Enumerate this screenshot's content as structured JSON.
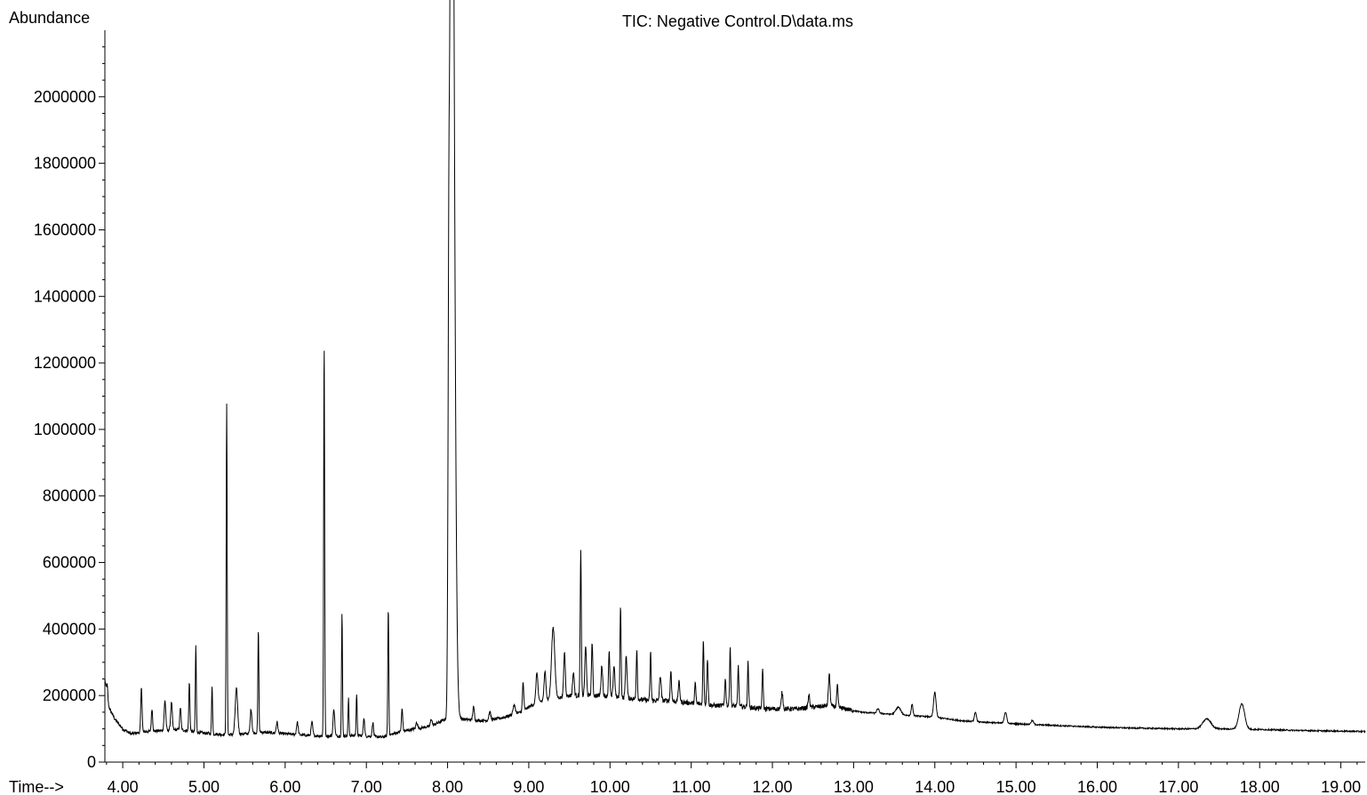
{
  "chart_data": {
    "type": "line",
    "title": "TIC: Negative Control.D\\data.ms",
    "ylabel": "Abundance",
    "xlabel": "Time-->",
    "xlim": [
      3.78,
      19.3
    ],
    "ylim": [
      0,
      2200000
    ],
    "x_ticks": [
      "4.00",
      "5.00",
      "6.00",
      "7.00",
      "8.00",
      "9.00",
      "10.00",
      "11.00",
      "12.00",
      "13.00",
      "14.00",
      "15.00",
      "16.00",
      "17.00",
      "18.00",
      "19.00"
    ],
    "y_ticks": [
      "0",
      "200000",
      "400000",
      "600000",
      "800000",
      "1000000",
      "1200000",
      "1400000",
      "1600000",
      "1800000",
      "2000000"
    ],
    "line_color": "#000000",
    "grid": false,
    "legend": "none",
    "baseline": [
      [
        3.78,
        250000
      ],
      [
        3.82,
        170000
      ],
      [
        3.9,
        130000
      ],
      [
        4.0,
        100000
      ],
      [
        4.1,
        85000
      ],
      [
        4.3,
        92000
      ],
      [
        4.5,
        95000
      ],
      [
        4.7,
        98000
      ],
      [
        4.9,
        90000
      ],
      [
        5.1,
        85000
      ],
      [
        5.3,
        82000
      ],
      [
        5.5,
        85000
      ],
      [
        5.7,
        90000
      ],
      [
        6.0,
        85000
      ],
      [
        6.3,
        80000
      ],
      [
        6.6,
        78000
      ],
      [
        6.9,
        80000
      ],
      [
        7.2,
        75000
      ],
      [
        7.4,
        90000
      ],
      [
        7.6,
        100000
      ],
      [
        7.8,
        108000
      ],
      [
        7.98,
        130000
      ],
      [
        8.15,
        130000
      ],
      [
        8.35,
        125000
      ],
      [
        8.5,
        125000
      ],
      [
        8.7,
        135000
      ],
      [
        8.9,
        150000
      ],
      [
        9.1,
        180000
      ],
      [
        9.3,
        190000
      ],
      [
        9.5,
        200000
      ],
      [
        9.7,
        200000
      ],
      [
        9.9,
        200000
      ],
      [
        10.1,
        195000
      ],
      [
        10.3,
        190000
      ],
      [
        10.5,
        185000
      ],
      [
        10.7,
        185000
      ],
      [
        10.9,
        180000
      ],
      [
        11.1,
        175000
      ],
      [
        11.3,
        170000
      ],
      [
        11.5,
        170000
      ],
      [
        11.7,
        165000
      ],
      [
        11.9,
        160000
      ],
      [
        12.1,
        160000
      ],
      [
        12.3,
        160000
      ],
      [
        12.5,
        165000
      ],
      [
        12.7,
        170000
      ],
      [
        12.9,
        160000
      ],
      [
        13.1,
        150000
      ],
      [
        13.4,
        145000
      ],
      [
        13.7,
        140000
      ],
      [
        14.0,
        135000
      ],
      [
        14.3,
        125000
      ],
      [
        14.6,
        120000
      ],
      [
        15.0,
        115000
      ],
      [
        15.5,
        110000
      ],
      [
        16.0,
        105000
      ],
      [
        16.5,
        102000
      ],
      [
        17.0,
        100000
      ],
      [
        17.5,
        100000
      ],
      [
        18.0,
        98000
      ],
      [
        18.5,
        95000
      ],
      [
        19.0,
        93000
      ],
      [
        19.3,
        92000
      ]
    ],
    "peaks": [
      [
        3.81,
        230000,
        0.008
      ],
      [
        4.23,
        225000,
        0.008
      ],
      [
        4.36,
        160000,
        0.008
      ],
      [
        4.52,
        185000,
        0.01
      ],
      [
        4.6,
        180000,
        0.01
      ],
      [
        4.71,
        165000,
        0.008
      ],
      [
        4.82,
        240000,
        0.007
      ],
      [
        4.9,
        350000,
        0.006
      ],
      [
        5.1,
        230000,
        0.006
      ],
      [
        5.28,
        1080000,
        0.006
      ],
      [
        5.4,
        220000,
        0.015
      ],
      [
        5.58,
        160000,
        0.01
      ],
      [
        5.67,
        400000,
        0.006
      ],
      [
        5.9,
        120000,
        0.01
      ],
      [
        6.15,
        120000,
        0.01
      ],
      [
        6.33,
        120000,
        0.01
      ],
      [
        6.48,
        1260000,
        0.006
      ],
      [
        6.6,
        160000,
        0.01
      ],
      [
        6.7,
        445000,
        0.006
      ],
      [
        6.78,
        190000,
        0.006
      ],
      [
        6.88,
        205000,
        0.006
      ],
      [
        6.97,
        135000,
        0.008
      ],
      [
        7.08,
        120000,
        0.008
      ],
      [
        7.27,
        465000,
        0.006
      ],
      [
        7.44,
        160000,
        0.008
      ],
      [
        7.62,
        120000,
        0.01
      ],
      [
        7.8,
        130000,
        0.01
      ],
      [
        8.02,
        1880000,
        0.012
      ],
      [
        8.045,
        2150000,
        0.01
      ],
      [
        8.07,
        1650000,
        0.012
      ],
      [
        8.32,
        165000,
        0.01
      ],
      [
        8.52,
        150000,
        0.012
      ],
      [
        8.82,
        170000,
        0.015
      ],
      [
        8.93,
        240000,
        0.008
      ],
      [
        9.1,
        270000,
        0.012
      ],
      [
        9.2,
        270000,
        0.012
      ],
      [
        9.3,
        405000,
        0.02
      ],
      [
        9.44,
        330000,
        0.01
      ],
      [
        9.55,
        270000,
        0.01
      ],
      [
        9.64,
        635000,
        0.007
      ],
      [
        9.7,
        350000,
        0.01
      ],
      [
        9.78,
        360000,
        0.008
      ],
      [
        9.9,
        290000,
        0.01
      ],
      [
        9.99,
        330000,
        0.008
      ],
      [
        10.05,
        290000,
        0.01
      ],
      [
        10.13,
        470000,
        0.007
      ],
      [
        10.2,
        320000,
        0.01
      ],
      [
        10.33,
        340000,
        0.007
      ],
      [
        10.5,
        330000,
        0.007
      ],
      [
        10.62,
        260000,
        0.01
      ],
      [
        10.75,
        275000,
        0.008
      ],
      [
        10.85,
        240000,
        0.01
      ],
      [
        11.05,
        235000,
        0.008
      ],
      [
        11.15,
        365000,
        0.007
      ],
      [
        11.2,
        310000,
        0.008
      ],
      [
        11.42,
        250000,
        0.008
      ],
      [
        11.48,
        345000,
        0.007
      ],
      [
        11.58,
        290000,
        0.007
      ],
      [
        11.7,
        300000,
        0.007
      ],
      [
        11.88,
        280000,
        0.007
      ],
      [
        12.12,
        210000,
        0.01
      ],
      [
        12.45,
        200000,
        0.01
      ],
      [
        12.7,
        265000,
        0.01
      ],
      [
        12.8,
        230000,
        0.008
      ],
      [
        13.3,
        160000,
        0.015
      ],
      [
        13.55,
        165000,
        0.03
      ],
      [
        13.72,
        175000,
        0.01
      ],
      [
        14.0,
        210000,
        0.015
      ],
      [
        14.5,
        150000,
        0.012
      ],
      [
        14.87,
        150000,
        0.015
      ],
      [
        15.2,
        125000,
        0.015
      ],
      [
        17.35,
        130000,
        0.05
      ],
      [
        17.78,
        175000,
        0.035
      ]
    ]
  }
}
